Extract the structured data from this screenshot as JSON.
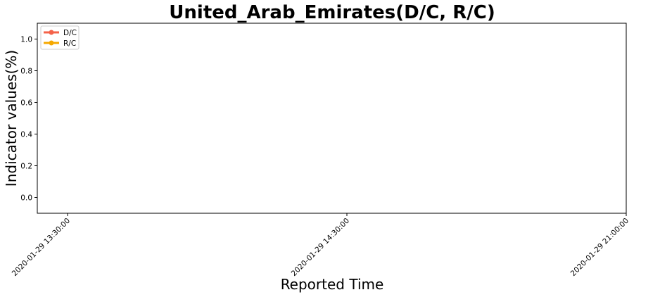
{
  "chart_data": {
    "type": "line",
    "title": "United_Arab_Emirates(D/C, R/C)",
    "xlabel": "Reported Time",
    "ylabel": "Indicator values(%)",
    "x_ticks": [
      "2020-01-29 13:30:00",
      "2020-01-29 14:30:00",
      "2020-01-29 21:00:00"
    ],
    "y_ticks": [
      "0.0",
      "0.2",
      "0.4",
      "0.6",
      "0.8",
      "1.0"
    ],
    "ylim": [
      -0.1,
      1.1
    ],
    "grid": false,
    "legend_position": "upper-left",
    "series": [
      {
        "name": "D/C",
        "color": "#f4634a",
        "values": []
      },
      {
        "name": "R/C",
        "color": "#f5a800",
        "values": []
      }
    ]
  }
}
